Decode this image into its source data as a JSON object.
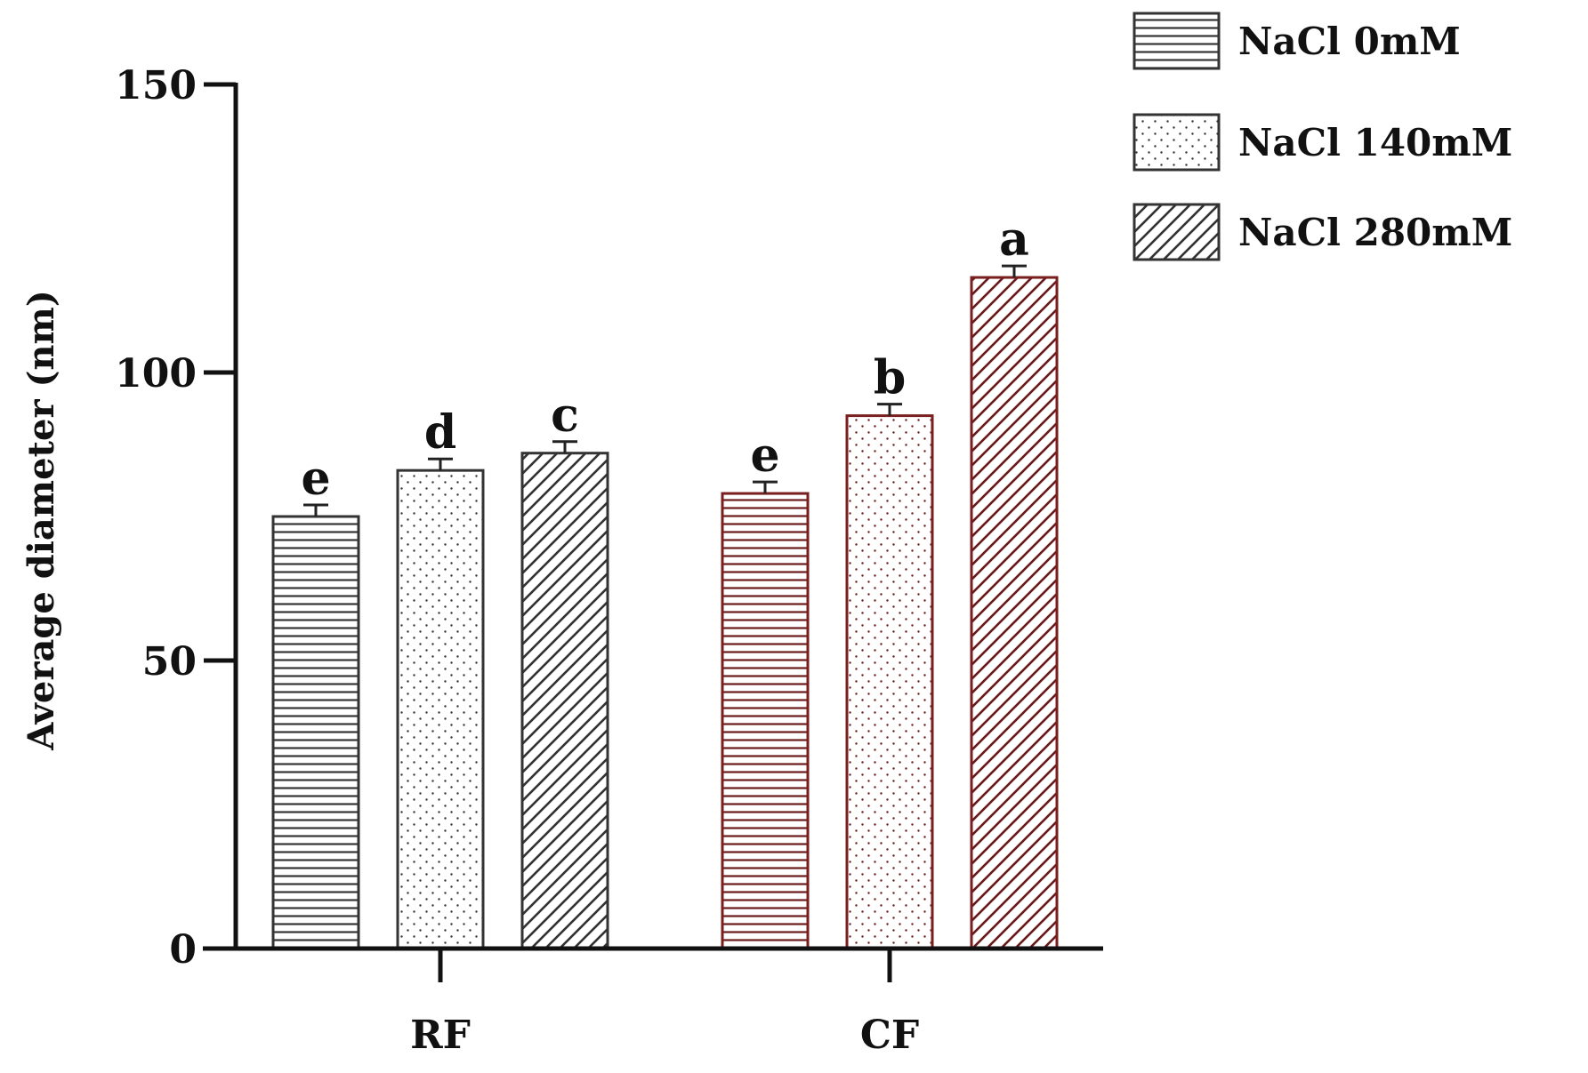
{
  "chart_data": {
    "type": "bar",
    "ylabel": "Average diameter (nm)",
    "xlabel": "",
    "ylim": [
      0,
      150
    ],
    "yticks": [
      0,
      50,
      100,
      150
    ],
    "categories": [
      "RF",
      "CF"
    ],
    "legend_position": "top-right",
    "series": [
      {
        "name": "NaCl 0mM",
        "pattern": "horizontal",
        "values": [
          75,
          79
        ],
        "errors": [
          2,
          2
        ],
        "letters": [
          "e",
          "e"
        ]
      },
      {
        "name": "NaCl 140mM",
        "pattern": "dots",
        "values": [
          83,
          92.5
        ],
        "errors": [
          2,
          2
        ],
        "letters": [
          "d",
          "b"
        ]
      },
      {
        "name": "NaCl 280mM",
        "pattern": "diagonal",
        "values": [
          86,
          116.5
        ],
        "errors": [
          2,
          2
        ],
        "letters": [
          "c",
          "a"
        ]
      }
    ],
    "colors": {
      "axis": "#111111",
      "rf_stroke": "#333333",
      "cf_stroke": "#7a1f1f",
      "rf_pattern": "#333333",
      "cf_pattern": "#6b1a1a"
    }
  }
}
